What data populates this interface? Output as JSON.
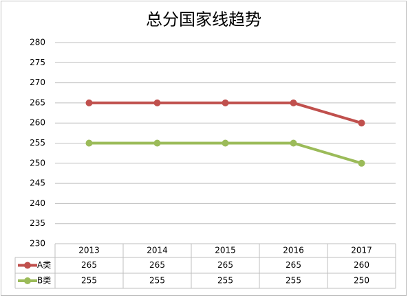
{
  "chart_data": {
    "type": "line",
    "title": "总分国家线趋势",
    "categories": [
      "2013",
      "2014",
      "2015",
      "2016",
      "2017"
    ],
    "series": [
      {
        "name": "A类",
        "color": "#c0504d",
        "values": [
          265,
          265,
          265,
          265,
          260
        ]
      },
      {
        "name": "B类",
        "color": "#9bbb59",
        "values": [
          255,
          255,
          255,
          255,
          250
        ]
      }
    ],
    "ylim": [
      230,
      280
    ],
    "yticks": [
      230,
      235,
      240,
      245,
      250,
      255,
      260,
      265,
      270,
      275,
      280
    ],
    "grid": true
  }
}
